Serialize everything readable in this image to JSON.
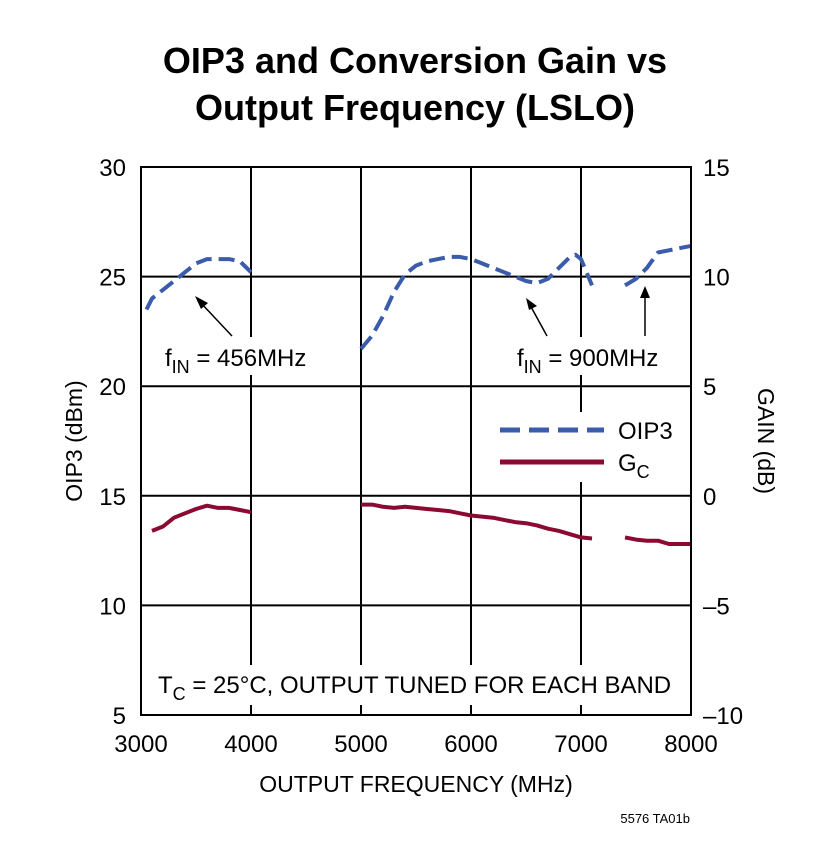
{
  "chart_data": {
    "type": "line",
    "title": [
      "OIP3 and Conversion Gain vs",
      "Output Frequency (LSLO)"
    ],
    "xlabel": "OUTPUT FREQUENCY (MHz)",
    "ylabel_left": "OIP3 (dBm)",
    "ylabel_right": "GAIN (dB)",
    "xlim": [
      3000,
      8000
    ],
    "ylim_left": [
      5,
      30
    ],
    "ylim_right": [
      -10,
      15
    ],
    "x_ticks": [
      3000,
      4000,
      5000,
      6000,
      7000,
      8000
    ],
    "y_left_ticks": [
      5,
      10,
      15,
      20,
      25,
      30
    ],
    "y_right_ticks": [
      "15",
      "10",
      "5",
      "0",
      "–5",
      "–10"
    ],
    "grid": true,
    "legend": {
      "position": "right-middle",
      "entries": [
        {
          "label": "OIP3",
          "color": "#3b5bab",
          "style": "dashed"
        },
        {
          "label": "G",
          "sub": "C",
          "color": "#8b0a32",
          "style": "solid"
        }
      ]
    },
    "series": [
      {
        "name": "OIP3",
        "axis": "left",
        "color": "#3b5bab",
        "style": "dashed",
        "segments": [
          [
            [
              3050,
              23.5
            ],
            [
              3100,
              24.0
            ],
            [
              3200,
              24.4
            ],
            [
              3300,
              24.8
            ],
            [
              3400,
              25.2
            ],
            [
              3500,
              25.6
            ],
            [
              3600,
              25.8
            ],
            [
              3700,
              25.8
            ],
            [
              3800,
              25.8
            ],
            [
              3900,
              25.7
            ],
            [
              4000,
              25.2
            ]
          ],
          [
            [
              5000,
              21.7
            ],
            [
              5100,
              22.3
            ],
            [
              5200,
              23.2
            ],
            [
              5300,
              24.3
            ],
            [
              5400,
              25.1
            ],
            [
              5500,
              25.5
            ],
            [
              5600,
              25.7
            ],
            [
              5700,
              25.8
            ],
            [
              5800,
              25.9
            ],
            [
              5900,
              25.9
            ],
            [
              6000,
              25.8
            ],
            [
              6100,
              25.6
            ],
            [
              6200,
              25.4
            ],
            [
              6300,
              25.2
            ],
            [
              6400,
              25.0
            ],
            [
              6500,
              24.8
            ],
            [
              6600,
              24.7
            ],
            [
              6700,
              24.9
            ],
            [
              6800,
              25.4
            ],
            [
              6900,
              25.9
            ],
            [
              6950,
              26.0
            ],
            [
              7000,
              25.8
            ],
            [
              7050,
              25.2
            ],
            [
              7100,
              24.6
            ]
          ],
          [
            [
              7400,
              24.6
            ],
            [
              7500,
              24.9
            ],
            [
              7600,
              25.4
            ],
            [
              7700,
              26.1
            ],
            [
              7800,
              26.2
            ],
            [
              7900,
              26.3
            ],
            [
              8000,
              26.4
            ]
          ]
        ]
      },
      {
        "name": "GC",
        "axis": "right",
        "color": "#8b0a32",
        "style": "solid",
        "segments": [
          [
            [
              3100,
              -1.6
            ],
            [
              3200,
              -1.4
            ],
            [
              3300,
              -1.0
            ],
            [
              3400,
              -0.8
            ],
            [
              3500,
              -0.6
            ],
            [
              3600,
              -0.45
            ],
            [
              3700,
              -0.55
            ],
            [
              3800,
              -0.55
            ],
            [
              3900,
              -0.65
            ],
            [
              4000,
              -0.75
            ]
          ],
          [
            [
              5000,
              -0.4
            ],
            [
              5100,
              -0.4
            ],
            [
              5200,
              -0.5
            ],
            [
              5300,
              -0.55
            ],
            [
              5400,
              -0.5
            ],
            [
              5500,
              -0.55
            ],
            [
              5600,
              -0.6
            ],
            [
              5700,
              -0.65
            ],
            [
              5800,
              -0.7
            ],
            [
              5900,
              -0.8
            ],
            [
              6000,
              -0.9
            ],
            [
              6100,
              -0.95
            ],
            [
              6200,
              -1.0
            ],
            [
              6300,
              -1.1
            ],
            [
              6400,
              -1.2
            ],
            [
              6500,
              -1.25
            ],
            [
              6600,
              -1.35
            ],
            [
              6700,
              -1.5
            ],
            [
              6800,
              -1.6
            ],
            [
              6900,
              -1.75
            ],
            [
              7000,
              -1.9
            ],
            [
              7100,
              -1.95
            ]
          ],
          [
            [
              7400,
              -1.9
            ],
            [
              7500,
              -2.0
            ],
            [
              7600,
              -2.05
            ],
            [
              7700,
              -2.05
            ],
            [
              7800,
              -2.2
            ],
            [
              7900,
              -2.2
            ],
            [
              8000,
              -2.2
            ]
          ]
        ]
      }
    ],
    "annotations": [
      {
        "label": "f",
        "sub": "IN",
        "text": " = 456MHz"
      },
      {
        "label": "f",
        "sub": "IN",
        "text": " = 900MHz"
      },
      {
        "label": "T",
        "sub": "C",
        "text": " = 25°C, OUTPUT TUNED FOR EACH BAND"
      }
    ],
    "figure_id": "5576 TA01b"
  }
}
